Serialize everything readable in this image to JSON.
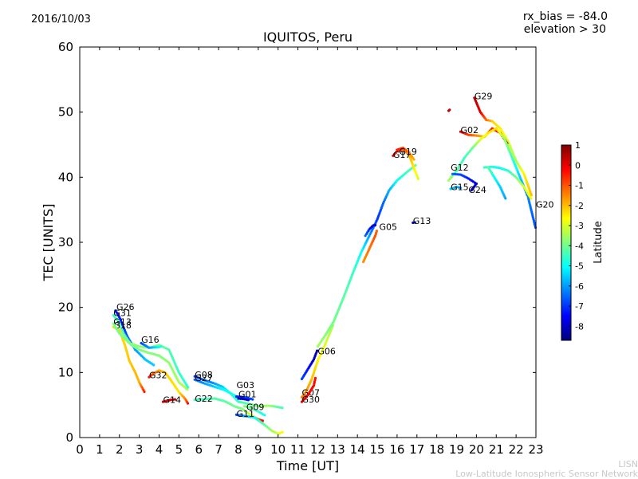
{
  "header": {
    "date": "2016/10/03",
    "rx_bias": "rx_bias = -84.0",
    "elevation": "elevation > 30"
  },
  "footer": {
    "line1": "LISN",
    "line2": "Low-Latitude Ionospheric Sensor Network"
  },
  "chart_data": {
    "type": "scatter",
    "title": "IQUITOS, Peru",
    "xlabel": "Time [UT]",
    "ylabel": "TEC [UNITS]",
    "xlim": [
      0,
      23
    ],
    "ylim": [
      0,
      60
    ],
    "xticks": [
      0,
      1,
      2,
      3,
      4,
      5,
      6,
      7,
      8,
      9,
      10,
      11,
      12,
      13,
      14,
      15,
      16,
      17,
      18,
      19,
      20,
      21,
      22,
      23
    ],
    "yticks": [
      0,
      10,
      20,
      30,
      40,
      50,
      60
    ],
    "grid": false,
    "colorbar": {
      "label": "Latitude",
      "min": -8.7,
      "max": 1.0,
      "ticks": [
        1,
        0,
        -1,
        -2,
        -3,
        -4,
        -5,
        -6,
        -7,
        -8
      ],
      "colormap": [
        "#00007f",
        "#0000ff",
        "#007fff",
        "#00ffff",
        "#7fff7f",
        "#ffff00",
        "#ff7f00",
        "#ff0000",
        "#7f0000"
      ]
    },
    "series": [
      {
        "name": "G26",
        "label_at": [
          1.85,
          19.6
        ],
        "points": [
          [
            1.8,
            19.5,
            -7.5
          ],
          [
            2.0,
            18.5,
            -7.3
          ],
          [
            2.2,
            17.0,
            -7.0
          ],
          [
            2.4,
            15.5,
            -6.6
          ],
          [
            2.8,
            13.5,
            -6.0
          ],
          [
            3.3,
            12.0,
            -5.6
          ],
          [
            3.8,
            11.0,
            -5.5
          ]
        ]
      },
      {
        "name": "G31",
        "label_at": [
          1.7,
          18.7
        ],
        "points": [
          [
            1.7,
            18.8,
            -4.5
          ],
          [
            1.9,
            18.0,
            -4.4
          ],
          [
            2.2,
            16.0,
            -4.2
          ],
          [
            2.6,
            14.2,
            -4.0
          ],
          [
            3.0,
            13.5,
            -3.9
          ],
          [
            3.5,
            13.0,
            -3.8
          ],
          [
            4.0,
            12.6,
            -3.8
          ],
          [
            4.5,
            11.5,
            -3.7
          ],
          [
            5.0,
            8.5,
            -3.5
          ],
          [
            5.5,
            7.2,
            -3.4
          ]
        ]
      },
      {
        "name": "G18",
        "label_at": [
          1.7,
          16.8
        ],
        "points": [
          [
            1.7,
            17.0,
            -2.3
          ],
          [
            2.0,
            16.5,
            -2.3
          ],
          [
            2.3,
            14.0,
            -2.2
          ],
          [
            2.5,
            11.8,
            -2.1
          ],
          [
            2.8,
            10.0,
            -2.0
          ],
          [
            3.0,
            8.5,
            -1.9
          ],
          [
            3.3,
            6.8,
            -0.2
          ]
        ]
      },
      {
        "name": "G13",
        "label_at": [
          1.7,
          17.3
        ],
        "points": [
          [
            1.7,
            17.5,
            -4.0
          ],
          [
            2.0,
            16.0,
            -3.9
          ],
          [
            2.5,
            14.5,
            -3.8
          ],
          [
            3.0,
            14.0,
            -3.7
          ],
          [
            3.5,
            13.8,
            -3.7
          ],
          [
            4.0,
            14.2,
            -4.0
          ],
          [
            4.5,
            13.5,
            -4.3
          ],
          [
            5.0,
            10.0,
            -4.5
          ],
          [
            5.5,
            7.5,
            -4.7
          ]
        ]
      },
      {
        "name": "G16",
        "label_at": [
          3.1,
          14.6
        ],
        "points": [
          [
            3.1,
            14.5,
            -6.8
          ],
          [
            3.5,
            13.8,
            -6.0
          ],
          [
            4.0,
            13.9,
            -5.0
          ],
          [
            4.2,
            14.1,
            -4.8
          ]
        ]
      },
      {
        "name": "G32",
        "label_at": [
          3.5,
          9.1
        ],
        "points": [
          [
            3.5,
            9.3,
            -0.3
          ],
          [
            3.7,
            9.8,
            -1.0
          ],
          [
            4.0,
            10.3,
            -1.8
          ],
          [
            4.3,
            10.0,
            -2.1
          ],
          [
            4.6,
            8.8,
            -2.3
          ],
          [
            5.0,
            7.0,
            -2.4
          ],
          [
            5.3,
            6.0,
            -1.5
          ],
          [
            5.5,
            5.0,
            0.0
          ]
        ]
      },
      {
        "name": "G14",
        "label_at": [
          4.2,
          5.3
        ],
        "points": [
          [
            4.2,
            5.5,
            0.1
          ],
          [
            4.6,
            5.8,
            0.2
          ],
          [
            4.9,
            5.9,
            0.3
          ]
        ]
      },
      {
        "name": "G08",
        "label_at": [
          5.8,
          9.2
        ],
        "points": [
          [
            5.8,
            9.4,
            -7.0
          ],
          [
            6.3,
            8.8,
            -6.5
          ],
          [
            6.8,
            8.3,
            -6.0
          ],
          [
            7.2,
            7.8,
            -5.5
          ],
          [
            7.6,
            6.8,
            -4.8
          ],
          [
            8.0,
            5.5,
            -4.5
          ],
          [
            8.5,
            5.2,
            -4.2
          ],
          [
            9.0,
            4.8,
            -3.8
          ],
          [
            9.5,
            4.9,
            -3.5
          ],
          [
            9.8,
            4.8,
            -4.0
          ],
          [
            10.3,
            4.5,
            -4.5
          ]
        ]
      },
      {
        "name": "G27",
        "label_at": [
          5.8,
          8.7
        ],
        "points": [
          [
            5.8,
            8.9,
            -6.5
          ],
          [
            6.3,
            8.3,
            -6.0
          ],
          [
            6.8,
            7.8,
            -5.5
          ],
          [
            7.3,
            7.3,
            -5.0
          ],
          [
            7.8,
            6.5,
            -4.8
          ],
          [
            8.2,
            5.8,
            -4.6
          ]
        ]
      },
      {
        "name": "G22",
        "label_at": [
          5.8,
          5.5
        ],
        "points": [
          [
            5.8,
            5.8,
            -4.5
          ],
          [
            6.3,
            5.9,
            -4.4
          ],
          [
            6.8,
            6.0,
            -4.3
          ],
          [
            7.3,
            5.6,
            -4.2
          ],
          [
            7.8,
            4.8,
            -4.0
          ],
          [
            8.2,
            4.4,
            -3.9
          ],
          [
            8.6,
            3.5,
            -3.0
          ],
          [
            9.0,
            2.8,
            -1.0
          ],
          [
            9.3,
            2.5,
            0.1
          ]
        ]
      },
      {
        "name": "G03",
        "label_at": [
          7.9,
          7.6
        ],
        "points": [
          [
            7.9,
            6.3,
            -7.2
          ],
          [
            8.3,
            6.2,
            -7.0
          ],
          [
            8.8,
            5.8,
            -6.8
          ]
        ]
      },
      {
        "name": "G01",
        "label_at": [
          8.0,
          6.2
        ],
        "points": [
          [
            8.0,
            6.0,
            -8.3
          ],
          [
            8.3,
            5.9,
            -8.0
          ],
          [
            8.6,
            5.7,
            -7.6
          ]
        ]
      },
      {
        "name": "G09",
        "label_at": [
          8.4,
          4.2
        ],
        "points": [
          [
            8.3,
            4.8,
            -3.8
          ],
          [
            8.6,
            4.6,
            -4.0
          ],
          [
            9.0,
            4.0,
            -4.5
          ],
          [
            9.4,
            3.3,
            -5.0
          ]
        ]
      },
      {
        "name": "G11",
        "label_at": [
          7.9,
          3.2
        ],
        "points": [
          [
            7.9,
            3.5,
            -6.8
          ],
          [
            8.3,
            3.3,
            -6.0
          ],
          [
            8.8,
            3.1,
            -5.0
          ],
          [
            9.3,
            2.0,
            -4.2
          ],
          [
            9.7,
            1.0,
            -3.5
          ],
          [
            10.0,
            0.6,
            -3.0
          ],
          [
            10.3,
            0.9,
            -2.5
          ]
        ]
      },
      {
        "name": "G07",
        "label_at": [
          11.2,
          6.4
        ],
        "points": [
          [
            11.2,
            6.2,
            -1.4
          ],
          [
            11.4,
            7.0,
            -1.6
          ],
          [
            11.7,
            9.0,
            -2.0
          ],
          [
            12.0,
            11.8,
            -2.5
          ],
          [
            12.4,
            14.5,
            -3.0
          ],
          [
            12.8,
            17.5,
            -3.6
          ]
        ]
      },
      {
        "name": "G30",
        "label_at": [
          11.2,
          5.4
        ],
        "points": [
          [
            11.2,
            5.5,
            0.0
          ],
          [
            11.5,
            6.5,
            -0.2
          ],
          [
            11.8,
            8.0,
            -0.3
          ],
          [
            11.9,
            9.4,
            -0.3
          ]
        ]
      },
      {
        "name": "G06",
        "label_at": [
          12.0,
          12.8
        ],
        "points": [
          [
            11.2,
            9.0,
            -6.8
          ],
          [
            11.5,
            10.5,
            -7.3
          ],
          [
            11.8,
            12.0,
            -8.0
          ],
          [
            12.0,
            13.6,
            -8.4
          ]
        ]
      },
      {
        "name": "G06b",
        "label_at": null,
        "points": [
          [
            12.0,
            14.0,
            -3.5
          ],
          [
            12.4,
            15.8,
            -3.8
          ],
          [
            12.8,
            17.8,
            -4.0
          ],
          [
            13.3,
            21.5,
            -4.2
          ],
          [
            13.8,
            25.5,
            -4.5
          ],
          [
            14.2,
            28.5,
            -5.0
          ],
          [
            14.6,
            31.0,
            -6.0
          ],
          [
            15.0,
            33.5,
            -7.0
          ],
          [
            15.3,
            36.0,
            -6.5
          ],
          [
            15.6,
            38.0,
            -5.8
          ],
          [
            16.0,
            39.5,
            -5.0
          ],
          [
            16.5,
            40.8,
            -4.5
          ],
          [
            17.0,
            42.0,
            -4.0
          ]
        ]
      },
      {
        "name": "G05",
        "label_at": [
          15.1,
          31.9
        ],
        "points": [
          [
            14.3,
            27.0,
            -1.6
          ],
          [
            14.6,
            29.0,
            -1.3
          ],
          [
            14.9,
            31.0,
            -1.0
          ],
          [
            15.0,
            32.0,
            -1.2
          ]
        ]
      },
      {
        "name": "G05b",
        "label_at": null,
        "points": [
          [
            14.4,
            31.0,
            -6.5
          ],
          [
            14.6,
            32.0,
            -7.2
          ],
          [
            14.8,
            32.6,
            -8.0
          ],
          [
            15.0,
            32.7,
            -8.3
          ]
        ]
      },
      {
        "name": "G17",
        "label_at": [
          15.8,
          43.0
        ],
        "points": [
          [
            15.8,
            43.3,
            0.0
          ],
          [
            16.0,
            44.0,
            -0.5
          ],
          [
            16.3,
            44.2,
            -1.0
          ],
          [
            16.6,
            43.5,
            -1.8
          ],
          [
            16.9,
            41.0,
            -2.6
          ],
          [
            17.1,
            39.5,
            -3.0
          ]
        ]
      },
      {
        "name": "G19",
        "label_at": [
          16.1,
          43.5
        ],
        "points": [
          [
            16.0,
            44.2,
            -0.4
          ],
          [
            16.3,
            44.5,
            -0.7
          ],
          [
            16.6,
            43.8,
            -1.4
          ],
          [
            16.9,
            42.5,
            -2.0
          ]
        ]
      },
      {
        "name": "G13b",
        "label_at": [
          16.8,
          32.8
        ],
        "points": [
          [
            16.8,
            33.0,
            -8.0
          ],
          [
            17.0,
            33.1,
            -8.3
          ]
        ]
      },
      {
        "name": "G29",
        "label_at": [
          19.9,
          52.0
        ],
        "points": [
          [
            18.6,
            50.2,
            0.3
          ],
          [
            18.7,
            50.5,
            0.4
          ]
        ]
      },
      {
        "name": "G29b",
        "label_at": null,
        "points": [
          [
            19.9,
            52.2,
            0.5
          ],
          [
            20.2,
            50.0,
            0.0
          ],
          [
            20.5,
            48.8,
            -1.2
          ],
          [
            20.8,
            48.6,
            -2.2
          ],
          [
            21.2,
            47.5,
            -2.5
          ],
          [
            21.6,
            45.5,
            -3.0
          ],
          [
            22.0,
            42.5,
            -3.5
          ],
          [
            22.4,
            40.5,
            -2.5
          ],
          [
            22.8,
            37.0,
            -2.0
          ]
        ]
      },
      {
        "name": "G02",
        "label_at": [
          19.2,
          46.8
        ],
        "points": [
          [
            19.2,
            47.0,
            0.1
          ],
          [
            19.6,
            46.5,
            -0.8
          ],
          [
            20.0,
            46.4,
            -1.5
          ],
          [
            20.4,
            46.2,
            -2.0
          ],
          [
            20.8,
            47.5,
            -0.5
          ],
          [
            21.2,
            46.8,
            0.2
          ],
          [
            21.6,
            45.0,
            0.5
          ]
        ]
      },
      {
        "name": "G12",
        "label_at": [
          18.7,
          41.0
        ],
        "points": [
          [
            18.6,
            39.5,
            -3.5
          ],
          [
            19.0,
            41.0,
            -4.2
          ],
          [
            19.4,
            43.0,
            -4.5
          ],
          [
            19.8,
            44.5,
            -4.0
          ],
          [
            20.2,
            45.8,
            -3.0
          ],
          [
            20.6,
            46.8,
            -2.5
          ],
          [
            21.0,
            47.5,
            -2.3
          ],
          [
            21.4,
            46.0,
            -3.5
          ],
          [
            21.8,
            43.0,
            -4.5
          ],
          [
            22.2,
            40.0,
            -5.5
          ],
          [
            22.6,
            37.0,
            -6.2
          ],
          [
            23.0,
            32.0,
            -6.8
          ]
        ]
      },
      {
        "name": "G15",
        "label_at": [
          18.7,
          38.0
        ],
        "points": [
          [
            18.7,
            38.2,
            -5.5
          ],
          [
            19.0,
            38.5,
            -5.8
          ],
          [
            19.3,
            38.3,
            -6.2
          ]
        ]
      },
      {
        "name": "G24",
        "label_at": [
          19.6,
          37.6
        ],
        "points": [
          [
            18.8,
            40.5,
            -6.5
          ],
          [
            19.2,
            40.4,
            -6.8
          ],
          [
            19.6,
            39.8,
            -7.2
          ],
          [
            20.0,
            39.0,
            -7.8
          ],
          [
            19.7,
            37.8,
            -8.3
          ]
        ]
      },
      {
        "name": "G24b",
        "label_at": null,
        "points": [
          [
            20.4,
            41.5,
            -4.5
          ],
          [
            20.8,
            41.6,
            -4.8
          ],
          [
            21.2,
            41.4,
            -5.0
          ],
          [
            21.6,
            41.0,
            -4.6
          ],
          [
            22.0,
            40.0,
            -4.0
          ],
          [
            22.4,
            38.5,
            -3.0
          ],
          [
            22.8,
            36.5,
            -2.5
          ]
        ]
      },
      {
        "name": "G12b",
        "label_at": null,
        "points": [
          [
            20.6,
            41.5,
            -4.2
          ],
          [
            20.9,
            40.0,
            -5.0
          ],
          [
            21.2,
            38.5,
            -5.5
          ],
          [
            21.5,
            36.5,
            -6.0
          ]
        ]
      },
      {
        "name": "G20",
        "label_at": [
          23.0,
          35.3
        ],
        "points": []
      }
    ]
  }
}
